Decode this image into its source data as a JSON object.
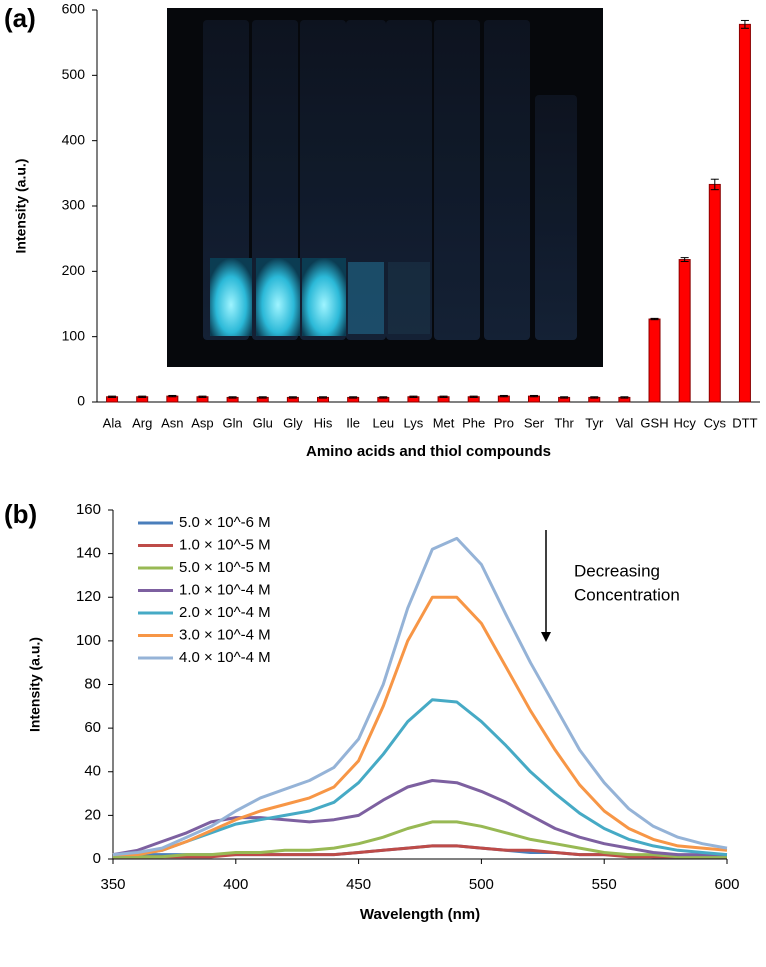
{
  "chart_data": [
    {
      "type": "bar",
      "panel_label": "(a)",
      "x_label": "Amino acids and thiol compounds",
      "y_label": "Intensity (a.u.)",
      "categories": [
        "Ala",
        "Arg",
        "Asn",
        "Asp",
        "Gln",
        "Glu",
        "Gly",
        "His",
        "Ile",
        "Leu",
        "Lys",
        "Met",
        "Phe",
        "Pro",
        "Ser",
        "Thr",
        "Tyr",
        "Val",
        "GSH",
        "Hcy",
        "Cys",
        "DTT"
      ],
      "values": [
        8,
        8,
        9,
        8,
        7,
        7,
        7,
        7,
        7,
        7,
        8,
        8,
        8,
        9,
        9,
        7,
        7,
        7,
        127,
        218,
        333,
        578
      ],
      "errors": [
        1,
        1,
        1,
        1,
        1,
        1,
        1,
        1,
        1,
        1,
        1,
        1,
        1,
        1,
        1,
        1,
        1,
        1,
        1,
        3,
        8,
        6
      ],
      "color": "#ff0000",
      "ylim": [
        0,
        600
      ],
      "yticks": [
        0,
        100,
        200,
        300,
        400,
        500,
        600
      ],
      "grid": false
    },
    {
      "type": "line",
      "panel_label": "(b)",
      "x_label": "Wavelength (nm)",
      "y_label": "Intensity (a.u.)",
      "annotation": [
        "Decreasing",
        "Concentration"
      ],
      "x": [
        350,
        360,
        370,
        380,
        390,
        400,
        410,
        420,
        430,
        440,
        450,
        460,
        470,
        480,
        490,
        500,
        510,
        520,
        530,
        540,
        550,
        560,
        570,
        580,
        590,
        600
      ],
      "series": [
        {
          "name": "5.0 × 10^-6 M",
          "color": "#4a7ebb",
          "values": [
            2,
            2,
            2,
            2,
            2,
            2,
            2,
            2,
            2,
            2,
            3,
            4,
            5,
            6,
            6,
            5,
            4,
            3,
            3,
            2,
            2,
            2,
            1,
            1,
            1,
            1
          ]
        },
        {
          "name": "1.0 × 10^-5 M",
          "color": "#be4b48",
          "values": [
            1,
            1,
            1,
            1,
            1,
            2,
            2,
            2,
            2,
            2,
            3,
            4,
            5,
            6,
            6,
            5,
            4,
            4,
            3,
            2,
            2,
            1,
            1,
            1,
            1,
            1
          ]
        },
        {
          "name": "5.0 × 10^-5 M",
          "color": "#98b954",
          "values": [
            1,
            1,
            1,
            2,
            2,
            3,
            3,
            4,
            4,
            5,
            7,
            10,
            14,
            17,
            17,
            15,
            12,
            9,
            7,
            5,
            3,
            2,
            2,
            1,
            1,
            1
          ]
        },
        {
          "name": "1.0 × 10^-4 M",
          "color": "#7d60a0",
          "values": [
            2,
            4,
            8,
            12,
            17,
            19,
            19,
            18,
            17,
            18,
            20,
            27,
            33,
            36,
            35,
            31,
            26,
            20,
            14,
            10,
            7,
            5,
            3,
            2,
            2,
            2
          ]
        },
        {
          "name": "2.0 × 10^-4 M",
          "color": "#46aac5",
          "values": [
            2,
            2,
            4,
            8,
            12,
            16,
            18,
            20,
            22,
            26,
            35,
            48,
            63,
            73,
            72,
            63,
            52,
            40,
            30,
            21,
            14,
            9,
            6,
            4,
            3,
            2
          ]
        },
        {
          "name": "3.0 × 10^-4 M",
          "color": "#f79646",
          "values": [
            2,
            2,
            4,
            8,
            13,
            18,
            22,
            25,
            28,
            33,
            45,
            70,
            100,
            120,
            120,
            108,
            88,
            68,
            50,
            34,
            22,
            14,
            9,
            6,
            5,
            4
          ]
        },
        {
          "name": "4.0 × 10^-4 M",
          "color": "#95b3d7",
          "values": [
            2,
            3,
            5,
            10,
            15,
            22,
            28,
            32,
            36,
            42,
            55,
            80,
            115,
            142,
            147,
            135,
            112,
            90,
            70,
            50,
            35,
            23,
            15,
            10,
            7,
            5
          ]
        }
      ],
      "xlim": [
        350,
        600
      ],
      "xticks": [
        350,
        400,
        450,
        500,
        550,
        600
      ],
      "ylim": [
        0,
        160
      ],
      "yticks": [
        0,
        20,
        40,
        60,
        80,
        100,
        120,
        140,
        160
      ],
      "grid": false
    }
  ]
}
